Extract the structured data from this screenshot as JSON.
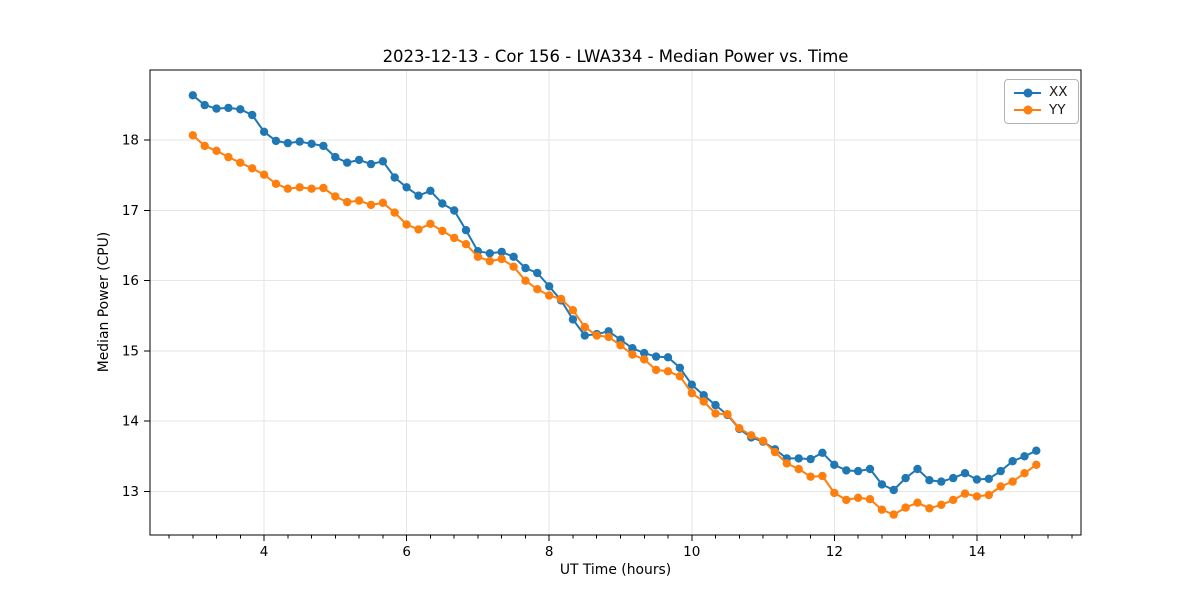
{
  "chart_data": {
    "type": "line",
    "title": "2023-12-13 - Cor 156 - LWA334 - Median Power vs. Time",
    "xlabel": "UT Time (hours)",
    "ylabel": "Median Power (CPU)",
    "xlim": [
      2.4,
      15.46
    ],
    "ylim": [
      12.38,
      19.0
    ],
    "x_ticks": [
      4,
      6,
      8,
      10,
      12,
      14
    ],
    "y_ticks": [
      13,
      14,
      15,
      16,
      17,
      18
    ],
    "x_minor_tick_step_hours": 0.3333,
    "grid": true,
    "grid_color": "#e6e6e6",
    "legend_position": "upper right",
    "series": [
      {
        "name": "XX",
        "color": "#1f77b4",
        "x": [
          3.0,
          3.167,
          3.333,
          3.5,
          3.667,
          3.833,
          4.0,
          4.167,
          4.333,
          4.5,
          4.667,
          4.833,
          5.0,
          5.167,
          5.333,
          5.5,
          5.667,
          5.833,
          6.0,
          6.167,
          6.333,
          6.5,
          6.667,
          6.833,
          7.0,
          7.167,
          7.333,
          7.5,
          7.667,
          7.833,
          8.0,
          8.167,
          8.333,
          8.5,
          8.667,
          8.833,
          9.0,
          9.167,
          9.333,
          9.5,
          9.667,
          9.833,
          10.0,
          10.167,
          10.333,
          10.5,
          10.667,
          10.833,
          11.0,
          11.167,
          11.333,
          11.5,
          11.667,
          11.833,
          12.0,
          12.167,
          12.333,
          12.5,
          12.667,
          12.833,
          13.0,
          13.167,
          13.333,
          13.5,
          13.667,
          13.833,
          14.0,
          14.167,
          14.333,
          14.5,
          14.667,
          14.833
        ],
        "y": [
          18.64,
          18.5,
          18.45,
          18.46,
          18.44,
          18.36,
          18.12,
          17.99,
          17.96,
          17.98,
          17.95,
          17.92,
          17.76,
          17.68,
          17.72,
          17.66,
          17.7,
          17.47,
          17.33,
          17.21,
          17.28,
          17.1,
          17.0,
          16.72,
          16.42,
          16.39,
          16.41,
          16.34,
          16.18,
          16.11,
          15.92,
          15.72,
          15.45,
          15.22,
          15.24,
          15.28,
          15.16,
          15.04,
          14.97,
          14.92,
          14.91,
          14.76,
          14.52,
          14.37,
          14.23,
          14.09,
          13.89,
          13.77,
          13.71,
          13.6,
          13.47,
          13.47,
          13.46,
          13.55,
          13.38,
          13.3,
          13.29,
          13.32,
          13.1,
          13.02,
          13.19,
          13.32,
          13.16,
          13.14,
          13.19,
          13.26,
          13.17,
          13.18,
          13.29,
          13.43,
          13.5,
          13.58
        ]
      },
      {
        "name": "YY",
        "color": "#ff7f0e",
        "x": [
          3.0,
          3.167,
          3.333,
          3.5,
          3.667,
          3.833,
          4.0,
          4.167,
          4.333,
          4.5,
          4.667,
          4.833,
          5.0,
          5.167,
          5.333,
          5.5,
          5.667,
          5.833,
          6.0,
          6.167,
          6.333,
          6.5,
          6.667,
          6.833,
          7.0,
          7.167,
          7.333,
          7.5,
          7.667,
          7.833,
          8.0,
          8.167,
          8.333,
          8.5,
          8.667,
          8.833,
          9.0,
          9.167,
          9.333,
          9.5,
          9.667,
          9.833,
          10.0,
          10.167,
          10.333,
          10.5,
          10.667,
          10.833,
          11.0,
          11.167,
          11.333,
          11.5,
          11.667,
          11.833,
          12.0,
          12.167,
          12.333,
          12.5,
          12.667,
          12.833,
          13.0,
          13.167,
          13.333,
          13.5,
          13.667,
          13.833,
          14.0,
          14.167,
          14.333,
          14.5,
          14.667,
          14.833
        ],
        "y": [
          18.07,
          17.92,
          17.85,
          17.76,
          17.68,
          17.6,
          17.51,
          17.38,
          17.31,
          17.33,
          17.31,
          17.32,
          17.2,
          17.12,
          17.14,
          17.08,
          17.11,
          16.97,
          16.8,
          16.73,
          16.81,
          16.71,
          16.61,
          16.52,
          16.34,
          16.28,
          16.31,
          16.2,
          16.0,
          15.88,
          15.79,
          15.74,
          15.58,
          15.34,
          15.22,
          15.2,
          15.08,
          14.95,
          14.88,
          14.73,
          14.71,
          14.64,
          14.4,
          14.28,
          14.11,
          14.1,
          13.9,
          13.8,
          13.72,
          13.56,
          13.4,
          13.32,
          13.21,
          13.22,
          12.98,
          12.88,
          12.91,
          12.89,
          12.74,
          12.67,
          12.77,
          12.84,
          12.76,
          12.81,
          12.88,
          12.97,
          12.93,
          12.95,
          13.07,
          13.14,
          13.26,
          13.38
        ]
      }
    ]
  },
  "legend": {
    "items": [
      {
        "label": "XX",
        "color": "#1f77b4"
      },
      {
        "label": "YY",
        "color": "#ff7f0e"
      }
    ]
  }
}
